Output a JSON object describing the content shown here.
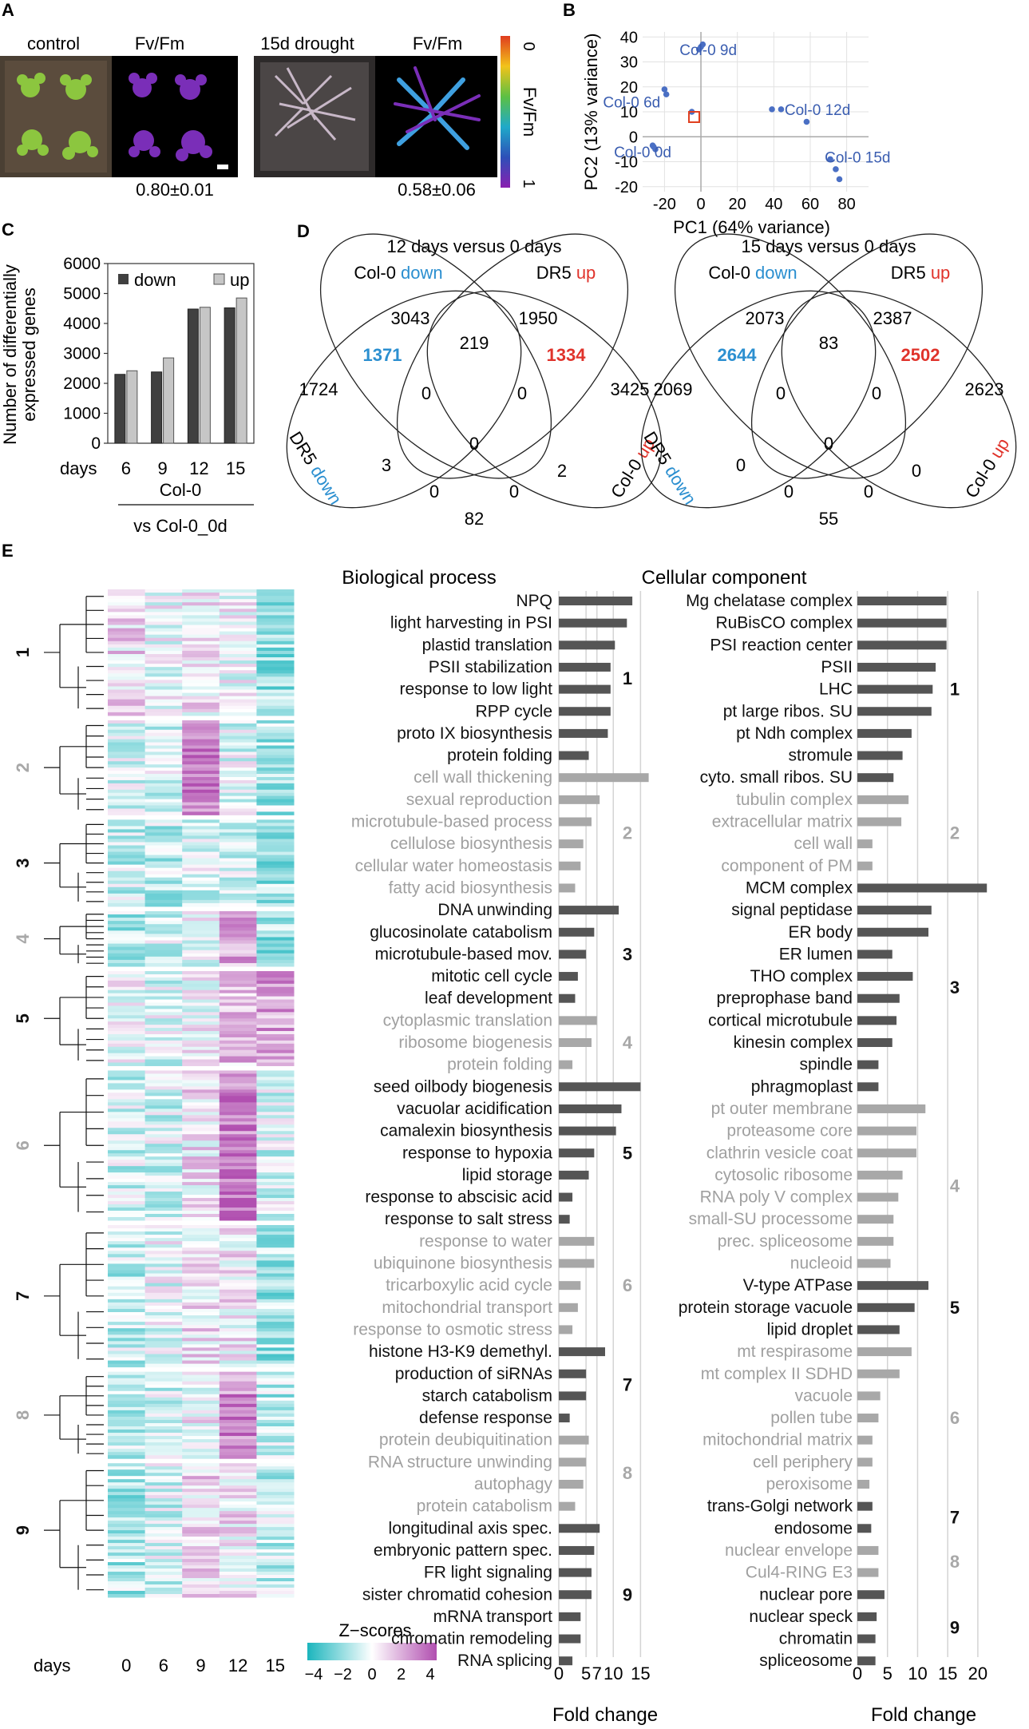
{
  "panel_labels": {
    "a": "A",
    "b": "B",
    "c": "C",
    "d": "D",
    "e": "E"
  },
  "panel_a": {
    "labels": [
      "control",
      "Fv/Fm",
      "15d drought",
      "Fv/Fm"
    ],
    "values": [
      "0.80±0.01",
      "0.58±0.06"
    ],
    "colorbar": {
      "title": "Fv/Fm",
      "min_label": "1",
      "max_label": "0"
    }
  },
  "chart_data": [
    {
      "type": "scatter",
      "title": "",
      "xlabel": "PC1 (64% variance)",
      "ylabel": "PC2 (13% variance)",
      "xlim": [
        -32,
        92
      ],
      "ylim": [
        -22,
        42
      ],
      "xticks": [
        -20,
        0,
        20,
        40,
        60,
        80
      ],
      "yticks": [
        -20,
        -10,
        0,
        10,
        20,
        30,
        40
      ],
      "xtick_labels": [
        "-20",
        "0",
        "20",
        "40",
        "60",
        "80"
      ],
      "ytick_labels": [
        "-20",
        "-10",
        "0",
        "10",
        "20",
        "30",
        "40"
      ],
      "points": [
        {
          "x": -26,
          "y": -4
        },
        {
          "x": -25,
          "y": -5
        },
        {
          "x": -26.5,
          "y": -3.5
        },
        {
          "x": -20,
          "y": 19
        },
        {
          "x": -19,
          "y": 17
        },
        {
          "x": -5,
          "y": 10
        },
        {
          "x": -1,
          "y": 35
        },
        {
          "x": 0,
          "y": 36
        },
        {
          "x": 1,
          "y": 37
        },
        {
          "x": 39,
          "y": 11
        },
        {
          "x": 44,
          "y": 11
        },
        {
          "x": 58,
          "y": 6
        },
        {
          "x": 71,
          "y": -9
        },
        {
          "x": 74,
          "y": -13
        },
        {
          "x": 76,
          "y": -17
        }
      ],
      "point_labels": [
        {
          "text": "Col-0 9d",
          "x": 4,
          "y": 35
        },
        {
          "text": "Col-0 6d",
          "x": -38,
          "y": 14
        },
        {
          "text": "Col-0 12d",
          "x": 64,
          "y": 11
        },
        {
          "text": "Col-0 0d",
          "x": -32,
          "y": -6
        },
        {
          "text": "Col-0 15d",
          "x": 86,
          "y": -8
        }
      ]
    },
    {
      "type": "bar",
      "categories": [
        "6",
        "9",
        "12",
        "15"
      ],
      "series": [
        {
          "name": "down",
          "values": [
            2300,
            2380,
            4480,
            4520
          ]
        },
        {
          "name": "up",
          "values": [
            2420,
            2850,
            4540,
            4850
          ]
        }
      ],
      "ylabel": "Number of differentially expressed genes",
      "xlabel": "days",
      "ylim": [
        0,
        6000
      ],
      "yticks": [
        0,
        1000,
        2000,
        3000,
        4000,
        5000,
        6000
      ],
      "ytick_labels": [
        "0",
        "1000",
        "2000",
        "3000",
        "4000",
        "5000",
        "6000"
      ],
      "group_label": "Col-0",
      "comparison": "vs Col-0_0d",
      "legend_position": "top-left"
    },
    {
      "type": "bar",
      "title": "Biological process",
      "xlabel": "Fold change",
      "xlim": [
        0,
        17
      ],
      "xticks": [
        0,
        5,
        7,
        10,
        15
      ],
      "xtick_labels": [
        "0",
        "5",
        "7",
        "10",
        "15"
      ],
      "clusters": [
        {
          "id": "1",
          "color": "dark",
          "terms": [
            {
              "term": "NPQ",
              "value": 13.5
            },
            {
              "term": "light harvesting in PSI",
              "value": 12.5
            },
            {
              "term": "plastid translation",
              "value": 10.3
            },
            {
              "term": "PSII stabilization",
              "value": 9.5
            },
            {
              "term": "response to low light",
              "value": 9.5
            },
            {
              "term": "RPP cycle",
              "value": 9.5
            },
            {
              "term": "proto IX biosynthesis",
              "value": 9.0
            },
            {
              "term": "protein folding",
              "value": 5.5
            }
          ]
        },
        {
          "id": "2",
          "color": "light",
          "terms": [
            {
              "term": "cell wall thickening",
              "value": 16.5
            },
            {
              "term": "sexual reproduction",
              "value": 7.5
            },
            {
              "term": "microtubule-based process",
              "value": 6.0
            },
            {
              "term": "cellulose biosynthesis",
              "value": 4.5
            },
            {
              "term": "cellular water homeostasis",
              "value": 4.0
            },
            {
              "term": "fatty acid biosynthesis",
              "value": 3.0
            }
          ]
        },
        {
          "id": "3",
          "color": "dark",
          "terms": [
            {
              "term": "DNA unwinding",
              "value": 11.0
            },
            {
              "term": "glucosinolate catabolism",
              "value": 6.5
            },
            {
              "term": "microtubule-based mov.",
              "value": 5.0
            },
            {
              "term": "mitotic cell cycle",
              "value": 3.5
            },
            {
              "term": "leaf development",
              "value": 3.0
            }
          ]
        },
        {
          "id": "4",
          "color": "light",
          "terms": [
            {
              "term": "cytoplasmic translation",
              "value": 7.0
            },
            {
              "term": "ribosome biogenesis",
              "value": 6.0
            },
            {
              "term": "protein folding",
              "value": 2.5
            }
          ]
        },
        {
          "id": "5",
          "color": "dark",
          "terms": [
            {
              "term": "seed oilbody biogenesis",
              "value": 15.0
            },
            {
              "term": "vacuolar acidification",
              "value": 11.5
            },
            {
              "term": "camalexin biosynthesis",
              "value": 10.5
            },
            {
              "term": "response to hypoxia",
              "value": 6.5
            },
            {
              "term": "lipid storage",
              "value": 5.5
            },
            {
              "term": "response to abscisic acid",
              "value": 2.5
            },
            {
              "term": "response to salt stress",
              "value": 2.0
            }
          ]
        },
        {
          "id": "6",
          "color": "light",
          "terms": [
            {
              "term": "response to water",
              "value": 6.5
            },
            {
              "term": "ubiquinone biosynthesis",
              "value": 6.5
            },
            {
              "term": "tricarboxylic acid cycle",
              "value": 4.0
            },
            {
              "term": "mitochondrial transport",
              "value": 3.5
            },
            {
              "term": "response to osmotic stress",
              "value": 2.5
            }
          ]
        },
        {
          "id": "7",
          "color": "dark",
          "terms": [
            {
              "term": "histone H3-K9 demethyl.",
              "value": 8.5
            },
            {
              "term": "production of siRNAs",
              "value": 5.0
            },
            {
              "term": "starch catabolism",
              "value": 5.0
            },
            {
              "term": "defense response",
              "value": 2.0
            }
          ]
        },
        {
          "id": "8",
          "color": "light",
          "terms": [
            {
              "term": "protein deubiquitination",
              "value": 5.5
            },
            {
              "term": "RNA structure unwinding",
              "value": 5.0
            },
            {
              "term": "autophagy",
              "value": 4.5
            },
            {
              "term": "protein catabolism",
              "value": 3.0
            }
          ]
        },
        {
          "id": "9",
          "color": "dark",
          "terms": [
            {
              "term": "longitudinal axis spec.",
              "value": 7.5
            },
            {
              "term": "embryonic pattern spec.",
              "value": 6.5
            },
            {
              "term": "FR light signaling",
              "value": 6.0
            },
            {
              "term": "sister chromatid cohesion",
              "value": 6.0
            },
            {
              "term": "mRNA transport",
              "value": 4.0
            },
            {
              "term": "chromatin remodeling",
              "value": 4.0
            },
            {
              "term": "RNA splicing",
              "value": 2.5
            }
          ]
        }
      ]
    },
    {
      "type": "bar",
      "title": "Cellular component",
      "xlabel": "Fold change",
      "xlim": [
        0,
        22
      ],
      "xticks": [
        0,
        5,
        10,
        15,
        20
      ],
      "xtick_labels": [
        "0",
        "5",
        "10",
        "15",
        "20"
      ],
      "clusters": [
        {
          "id": "1",
          "color": "dark",
          "terms": [
            {
              "term": "Mg chelatase complex",
              "value": 14.8
            },
            {
              "term": "RuBisCO complex",
              "value": 14.8
            },
            {
              "term": "PSI reaction center",
              "value": 14.8
            },
            {
              "term": "PSII",
              "value": 13.0
            },
            {
              "term": "LHC",
              "value": 12.5
            },
            {
              "term": "pt large ribos. SU",
              "value": 12.3
            },
            {
              "term": "pt Ndh complex",
              "value": 9.0
            },
            {
              "term": "stromule",
              "value": 7.5
            },
            {
              "term": "cyto. small ribos. SU",
              "value": 6.0
            }
          ]
        },
        {
          "id": "2",
          "color": "light",
          "terms": [
            {
              "term": "tubulin complex",
              "value": 8.5
            },
            {
              "term": "extracellular matrix",
              "value": 7.3
            },
            {
              "term": "cell wall",
              "value": 2.5
            },
            {
              "term": "component of PM",
              "value": 2.5
            }
          ]
        },
        {
          "id": "3",
          "color": "dark",
          "terms": [
            {
              "term": "MCM complex",
              "value": 21.5
            },
            {
              "term": "signal peptidase",
              "value": 12.3
            },
            {
              "term": "ER body",
              "value": 11.8
            },
            {
              "term": "ER lumen",
              "value": 5.8
            },
            {
              "term": "THO complex",
              "value": 9.2
            },
            {
              "term": "preprophase band",
              "value": 7.0
            },
            {
              "term": "cortical microtubule",
              "value": 6.5
            },
            {
              "term": "kinesin complex",
              "value": 5.8
            },
            {
              "term": "spindle",
              "value": 3.5
            },
            {
              "term": "phragmoplast",
              "value": 3.5
            }
          ]
        },
        {
          "id": "4",
          "color": "light",
          "terms": [
            {
              "term": "pt outer membrane",
              "value": 11.3
            },
            {
              "term": "proteasome core",
              "value": 9.8
            },
            {
              "term": "clathrin vesicle coat",
              "value": 9.8
            },
            {
              "term": "cytosolic ribosome",
              "value": 7.5
            },
            {
              "term": "RNA poly V complex",
              "value": 6.8
            },
            {
              "term": "small-SU processome",
              "value": 6.0
            },
            {
              "term": "prec. spliceosome",
              "value": 6.0
            },
            {
              "term": "nucleoid",
              "value": 5.5
            }
          ]
        },
        {
          "id": "5",
          "color": "dark",
          "terms": [
            {
              "term": "V-type ATPase",
              "value": 11.8
            },
            {
              "term": "protein storage vacuole",
              "value": 9.5
            },
            {
              "term": "lipid droplet",
              "value": 7.0
            }
          ]
        },
        {
          "id": "6",
          "color": "light",
          "terms": [
            {
              "term": "mt respirasome",
              "value": 9.0
            },
            {
              "term": "mt complex II SDHD",
              "value": 7.0
            },
            {
              "term": "vacuole",
              "value": 3.8
            },
            {
              "term": "pollen tube",
              "value": 3.5
            },
            {
              "term": "mitochondrial matrix",
              "value": 2.5
            },
            {
              "term": "cell periphery",
              "value": 2.5
            },
            {
              "term": "peroxisome",
              "value": 2.0
            }
          ]
        },
        {
          "id": "7",
          "color": "dark",
          "terms": [
            {
              "term": "trans-Golgi network",
              "value": 2.5
            },
            {
              "term": "endosome",
              "value": 2.3
            }
          ]
        },
        {
          "id": "8",
          "color": "light",
          "terms": [
            {
              "term": "nuclear envelope",
              "value": 3.5
            },
            {
              "term": "Cul4-RING E3",
              "value": 3.5
            }
          ]
        },
        {
          "id": "9",
          "color": "dark",
          "terms": [
            {
              "term": "nuclear pore",
              "value": 4.5
            },
            {
              "term": "nuclear speck",
              "value": 3.2
            },
            {
              "term": "chromatin",
              "value": 3.0
            },
            {
              "term": "spliceosome",
              "value": 3.0
            }
          ]
        }
      ]
    },
    {
      "type": "heatmap",
      "columns": [
        "0",
        "6",
        "9",
        "12",
        "15"
      ],
      "xlabel": "days",
      "colorbar_title": "Z−scores",
      "colorbar_ticks": [
        "−4",
        "−2",
        "0",
        "2",
        "4"
      ],
      "clusters": [
        {
          "id": "1",
          "color": "dark",
          "rows": 160,
          "pattern": [
            0.4,
            0.0,
            0.2,
            0.0,
            -0.9
          ]
        },
        {
          "id": "2",
          "color": "light",
          "rows": 120,
          "pattern": [
            -0.3,
            -0.3,
            1.6,
            -0.2,
            -0.7
          ]
        },
        {
          "id": "3",
          "color": "dark",
          "rows": 110,
          "pattern": [
            -0.5,
            -0.5,
            -0.2,
            -0.3,
            -0.8
          ]
        },
        {
          "id": "4",
          "color": "light",
          "rows": 70,
          "pattern": [
            -0.6,
            -0.4,
            -0.1,
            0.9,
            -0.9
          ]
        },
        {
          "id": "5",
          "color": "dark",
          "rows": 120,
          "pattern": [
            -0.1,
            -0.2,
            0.1,
            0.7,
            1.0
          ]
        },
        {
          "id": "6",
          "color": "light",
          "rows": 190,
          "pattern": [
            -0.4,
            -0.3,
            0.3,
            1.5,
            -0.3
          ]
        },
        {
          "id": "7",
          "color": "dark",
          "rows": 180,
          "pattern": [
            -0.5,
            -0.1,
            0.3,
            0.2,
            -0.8
          ]
        },
        {
          "id": "8",
          "color": "light",
          "rows": 110,
          "pattern": [
            -0.6,
            -0.3,
            0.1,
            1.3,
            -0.6
          ]
        },
        {
          "id": "9",
          "color": "dark",
          "rows": 170,
          "pattern": [
            -0.7,
            -0.3,
            0.4,
            0.3,
            -0.5
          ]
        }
      ]
    }
  ],
  "venn_12": {
    "title": "12 days versus 0 days",
    "labels": {
      "col0_text": "Col-0 ",
      "down_word": "down",
      "dr5_text": "DR5 ",
      "up_word": "up"
    },
    "numbers": [
      "3043",
      "1950",
      "219",
      "1371",
      "1334",
      "1724",
      "0",
      "0",
      "3425",
      "0",
      "3",
      "2",
      "0",
      "0",
      "82"
    ]
  },
  "venn_15": {
    "title": "15 days versus 0 days",
    "labels": {
      "col0_text": "Col-0 ",
      "down_word": "down",
      "dr5_text": "DR5 ",
      "up_word": "up"
    },
    "numbers": [
      "2073",
      "2387",
      "83",
      "2644",
      "2502",
      "2069",
      "0",
      "0",
      "2623",
      "0",
      "0",
      "0",
      "0",
      "0",
      "55"
    ]
  },
  "colors": {
    "dark_bar": "#555555",
    "light_bar": "#a8a8a8",
    "scatter_point": "#4a6fc4",
    "scatter_text": "#3a5db0",
    "blue_text": "#2b8fd0",
    "red_text": "#e0332b",
    "heatmap_low": "#1bb5bd",
    "heatmap_mid": "#ffffff",
    "heatmap_high": "#b14fb0",
    "highlight_box": "#e04020"
  }
}
